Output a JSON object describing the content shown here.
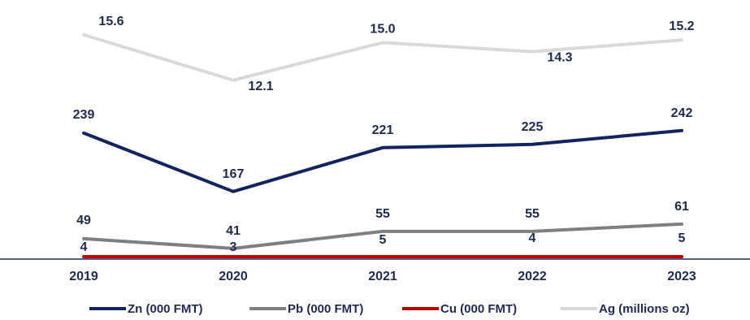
{
  "chart_data": {
    "type": "line",
    "title": "",
    "xlabel": "",
    "ylabel": "",
    "x": [
      "2019",
      "2020",
      "2021",
      "2022",
      "2023"
    ],
    "grid": false,
    "legend_position": "bottom",
    "series": [
      {
        "name": "Zn (000 FMT)",
        "color": "#0f2461",
        "values": [
          239,
          167,
          221,
          225,
          242
        ],
        "labels": [
          "239",
          "167",
          "221",
          "225",
          "242"
        ]
      },
      {
        "name": "Pb (000 FMT)",
        "color": "#7f7f7f",
        "values": [
          49,
          41,
          55,
          55,
          61
        ],
        "labels": [
          "49",
          "41",
          "55",
          "55",
          "61"
        ]
      },
      {
        "name": "Cu (000 FMT)",
        "color": "#c00000",
        "values": [
          4,
          3,
          5,
          4,
          5
        ],
        "labels": [
          "4",
          "3",
          "5",
          "4",
          "5"
        ]
      },
      {
        "name": "Ag (millions oz)",
        "color": "#d9d9d9",
        "values": [
          15.6,
          12.1,
          15.0,
          14.3,
          15.2
        ],
        "labels": [
          "15.6",
          "12.1",
          "15.0",
          "14.3",
          "15.2"
        ]
      }
    ]
  }
}
